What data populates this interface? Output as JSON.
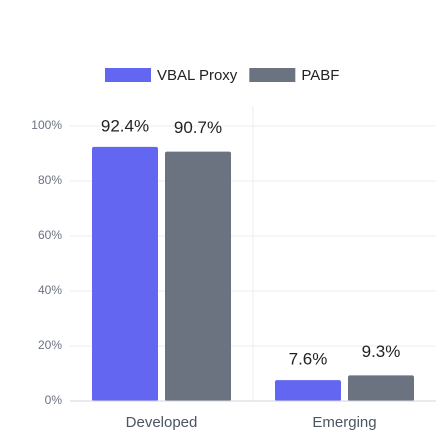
{
  "chart_data": {
    "type": "bar",
    "categories": [
      "Developed",
      "Emerging"
    ],
    "series": [
      {
        "name": "VBAL Proxy",
        "color": "#6366f1",
        "values": [
          92.4,
          7.6
        ],
        "value_labels": [
          "92.4%",
          "7.6%"
        ]
      },
      {
        "name": "PABF",
        "color": "#6b7280",
        "values": [
          90.7,
          9.3
        ],
        "value_labels": [
          "90.7%",
          "9.3%"
        ]
      }
    ],
    "ylim": [
      0,
      100
    ],
    "yticks": [
      {
        "value": 0,
        "label": "0%"
      },
      {
        "value": 20,
        "label": "20%"
      },
      {
        "value": 40,
        "label": "40%"
      },
      {
        "value": 60,
        "label": "60%"
      },
      {
        "value": 80,
        "label": "80%"
      },
      {
        "value": 100,
        "label": "100%"
      }
    ],
    "grid": true,
    "legend": "top"
  }
}
